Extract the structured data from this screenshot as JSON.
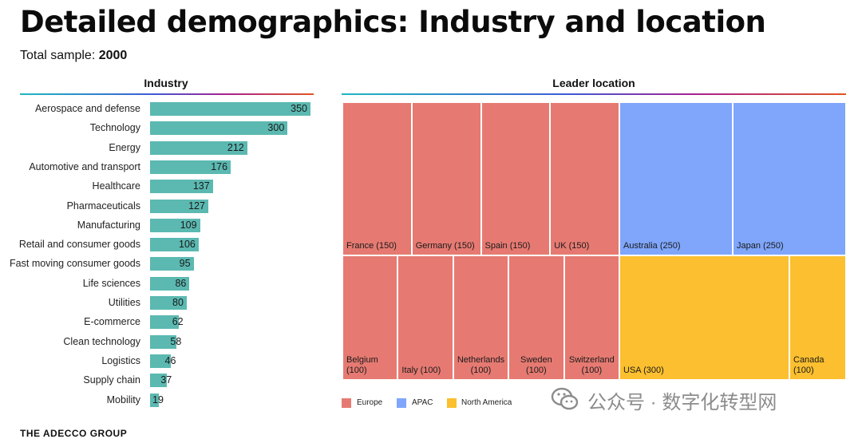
{
  "header": {
    "title": "Detailed demographics: Industry and location",
    "sample_label": "Total sample:",
    "sample_value": "2000"
  },
  "industry_section": {
    "heading": "Industry"
  },
  "location_section": {
    "heading": "Leader location"
  },
  "colors": {
    "bar": "#5bb9b1",
    "europe": "#e67a72",
    "apac": "#7fa6fb",
    "north_america": "#fbbf2f"
  },
  "chart_data": [
    {
      "type": "bar",
      "orientation": "horizontal",
      "title": "Industry",
      "categories": [
        "Aerospace and defense",
        "Technology",
        "Energy",
        "Automotive and transport",
        "Healthcare",
        "Pharmaceuticals",
        "Manufacturing",
        "Retail and consumer goods",
        "Fast moving consumer goods",
        "Life sciences",
        "Utilities",
        "E-commerce",
        "Clean technology",
        "Logistics",
        "Supply chain",
        "Mobility"
      ],
      "values": [
        350,
        300,
        212,
        176,
        137,
        127,
        109,
        106,
        95,
        86,
        80,
        62,
        58,
        46,
        37,
        19
      ],
      "xlim": [
        0,
        350
      ]
    },
    {
      "type": "treemap",
      "title": "Leader location",
      "groups": [
        {
          "name": "Europe",
          "color": "#e67a72",
          "items": [
            {
              "label": "France (150)",
              "value": 150
            },
            {
              "label": "Germany (150)",
              "value": 150
            },
            {
              "label": "Spain (150)",
              "value": 150
            },
            {
              "label": "UK (150)",
              "value": 150
            },
            {
              "label": "Belgium\n(100)",
              "value": 100
            },
            {
              "label": "Italy (100)",
              "value": 100
            },
            {
              "label": "Netherlands\n(100)",
              "value": 100
            },
            {
              "label": "Sweden\n(100)",
              "value": 100
            },
            {
              "label": "Switzerland\n(100)",
              "value": 100
            }
          ]
        },
        {
          "name": "APAC",
          "color": "#7fa6fb",
          "items": [
            {
              "label": "Australia (250)",
              "value": 250
            },
            {
              "label": "Japan (250)",
              "value": 250
            }
          ]
        },
        {
          "name": "North America",
          "color": "#fbbf2f",
          "items": [
            {
              "label": "USA (300)",
              "value": 300
            },
            {
              "label": "Canada\n(100)",
              "value": 100
            }
          ]
        }
      ],
      "legend": [
        "Europe",
        "APAC",
        "North America"
      ],
      "legend_position": "bottom-left"
    }
  ],
  "footer": {
    "brand": "THE ADECCO GROUP",
    "watermark": "公众号 · 数字化转型网"
  }
}
